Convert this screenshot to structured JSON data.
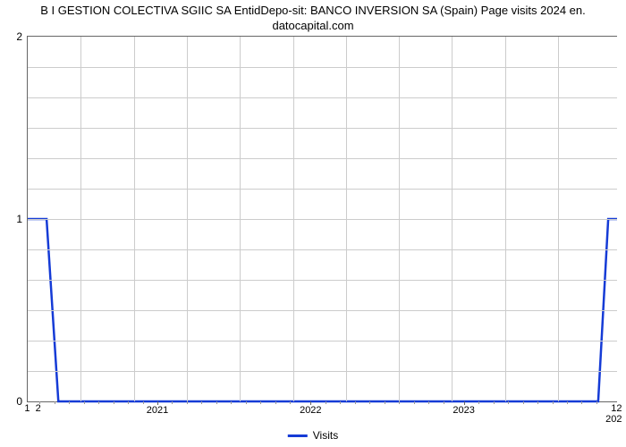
{
  "chart": {
    "type": "line",
    "title_line1": "B I GESTION COLECTIVA SGIIC SA EntidDepo-sit: BANCO INVERSION SA (Spain) Page visits 2024 en.",
    "title_line2": "datocapital.com",
    "title_fontsize": 13,
    "background_color": "#ffffff",
    "grid_color": "#cccccc",
    "axis_color": "#666666",
    "line_color": "#153bd6",
    "line_width": 2.5,
    "xlabel_years": [
      "2021",
      "2022",
      "2023"
    ],
    "x_year_positions_pct": [
      22,
      48,
      74
    ],
    "x_left_labels": [
      "1",
      "2"
    ],
    "x_right_labels": [
      "12",
      "202"
    ],
    "ylim": [
      0,
      2
    ],
    "ytick_labels": [
      "0",
      "1",
      "2"
    ],
    "ytick_positions_pct": [
      100,
      50,
      0
    ],
    "hgrid_positions_pct": [
      0,
      8.33,
      16.67,
      25,
      33.33,
      41.67,
      50,
      58.33,
      66.67,
      75,
      83.33,
      91.67,
      100
    ],
    "vgrid_positions_pct": [
      9,
      18,
      27,
      36,
      45,
      54,
      63,
      72,
      81,
      90
    ],
    "minor_tick_positions_pct": [
      2,
      4.5,
      7,
      9.5,
      12,
      14.5,
      17,
      19.5,
      24.5,
      27,
      29.5,
      32,
      34.5,
      37,
      39.5,
      42,
      44.5,
      50.5,
      53,
      55.5,
      58,
      60.5,
      63,
      65.5,
      68,
      70.5,
      76.5,
      79,
      81.5,
      84,
      86.5,
      89,
      91.5,
      94,
      96.5
    ],
    "series": {
      "name": "Visits",
      "points": [
        {
          "x_pct": 0,
          "y_val": 1
        },
        {
          "x_pct": 3.2,
          "y_val": 1
        },
        {
          "x_pct": 5.2,
          "y_val": 0
        },
        {
          "x_pct": 96.8,
          "y_val": 0
        },
        {
          "x_pct": 98.5,
          "y_val": 1
        },
        {
          "x_pct": 100,
          "y_val": 1
        }
      ]
    },
    "legend_label": "Visits"
  }
}
